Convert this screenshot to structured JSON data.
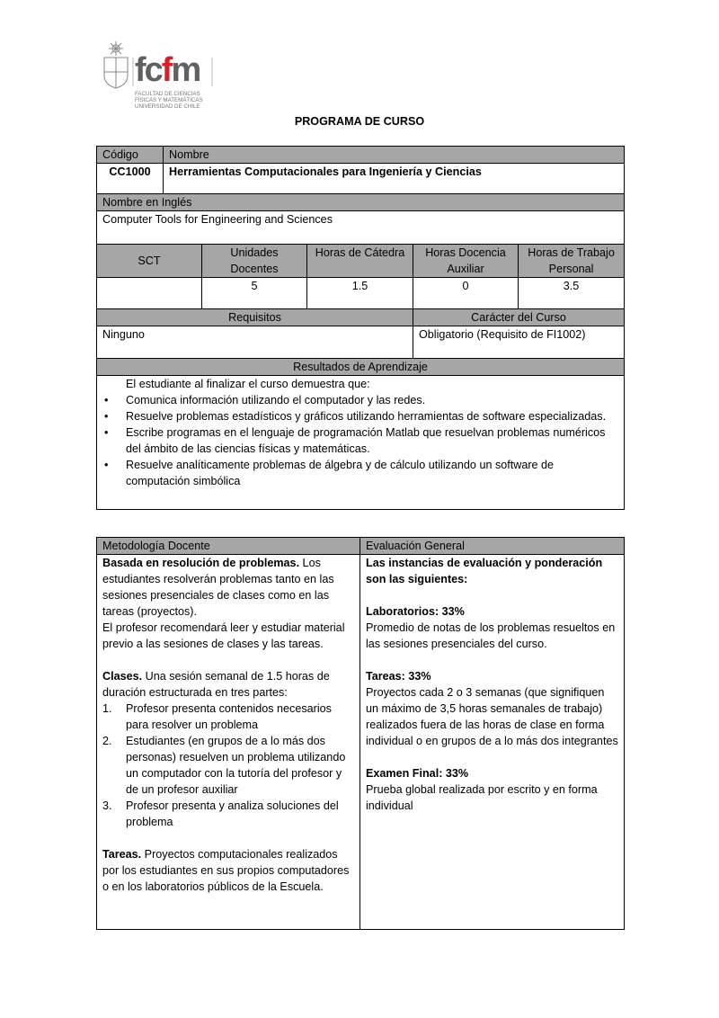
{
  "logo": {
    "text": "fcfm",
    "subtitle": [
      "FACULTAD DE CIENCIAS",
      "FÍSICAS Y MATEMÁTICAS",
      "UNIVERSIDAD DE CHILE"
    ],
    "colors": {
      "gray": "#5f6062",
      "red": "#d3222a"
    }
  },
  "title": "PROGRAMA DE CURSO",
  "course": {
    "code_label": "Código",
    "name_label": "Nombre",
    "code": "CC1000",
    "name": "Herramientas Computacionales para Ingeniería y Ciencias",
    "english_label": "Nombre en Inglés",
    "english": "Computer Tools for Engineering and Sciences"
  },
  "hours": {
    "headers": [
      "SCT",
      "Unidades Docentes",
      "Horas de Cátedra",
      "Horas Docencia Auxiliar",
      "Horas de Trabajo Personal"
    ],
    "values": [
      "",
      "5",
      "1.5",
      "0",
      "3.5"
    ]
  },
  "req": {
    "req_label": "Requisitos",
    "req": "Ninguno",
    "char_label": "Carácter del Curso",
    "char": "Obligatorio (Requisito de FI1002)"
  },
  "results": {
    "label": "Resultados de Aprendizaje",
    "intro": "El estudiante al finalizar el curso demuestra que:",
    "items": [
      "Comunica información utilizando el computador y las redes.",
      "Resuelve problemas estadísticos y gráficos utilizando herramientas de software especializadas.",
      "Escribe programas en el lenguaje de programación Matlab que resuelvan problemas numéricos del ámbito de las ciencias físicas y matemáticas.",
      "Resuelve analíticamente problemas de álgebra y de cálculo utilizando un software de computación simbólica"
    ]
  },
  "method": {
    "label": "Metodología Docente",
    "p1_bold": "Basada en resolución de problemas.",
    "p1": " Los estudiantes resolverán problemas tanto en las sesiones presenciales de clases como en las tareas (proyectos).",
    "p2": "El profesor recomendará leer y estudiar material previo a las sesiones de clases y las tareas.",
    "p3_bold": "Clases.",
    "p3": " Una sesión semanal de 1.5 horas de duración estructurada  en tres partes:",
    "steps": [
      "Profesor presenta contenidos necesarios para resolver un problema",
      "Estudiantes (en grupos de a lo más dos personas) resuelven un problema utilizando un computador con la tutoría del profesor y de un profesor auxiliar",
      "Profesor presenta y analiza soluciones del problema"
    ],
    "step_nums": [
      "1.",
      "2.",
      "3."
    ],
    "p4_bold": "Tareas.",
    "p4": " Proyectos computacionales realizados por los estudiantes en sus propios computadores o en los laboratorios públicos de la Escuela."
  },
  "eval": {
    "label": "Evaluación General",
    "intro": "Las instancias de evaluación y ponderación son las siguientes:",
    "items": [
      {
        "title": "Laboratorios: 33%",
        "text": "Promedio de notas de los problemas resueltos en las sesiones presenciales del curso."
      },
      {
        "title": "Tareas: 33%",
        "text": "Proyectos cada 2 o 3 semanas (que signifiquen un máximo de 3,5 horas semanales de trabajo) realizados fuera de las horas de clase en forma individual o en grupos de a lo más dos integrantes"
      },
      {
        "title": "Examen Final: 33%",
        "text": "Prueba global realizada por escrito y en forma individual"
      }
    ]
  }
}
